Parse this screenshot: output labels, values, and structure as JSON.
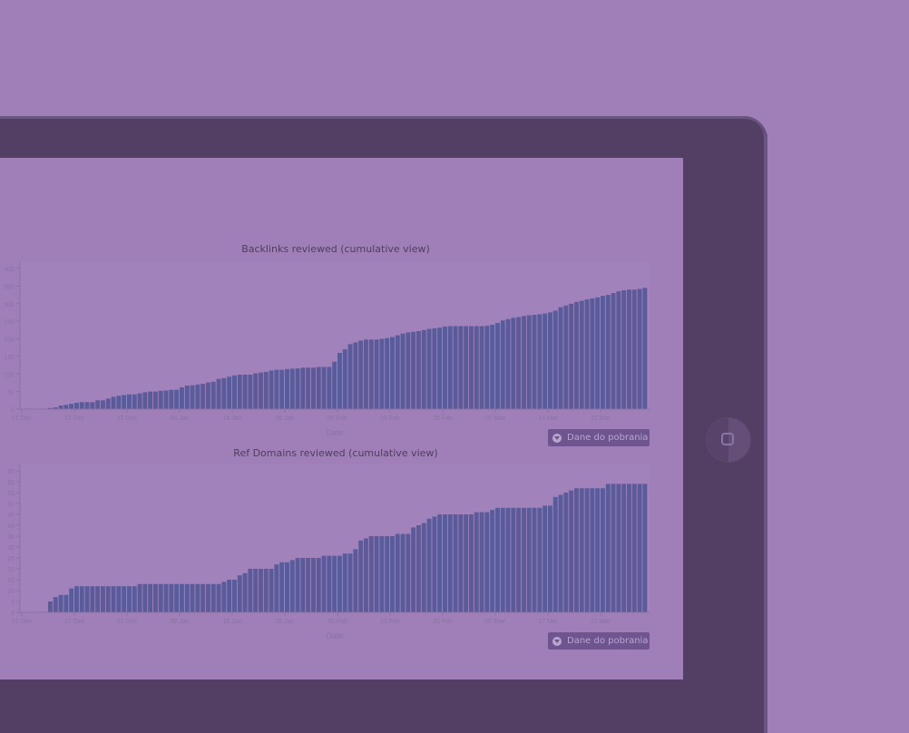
{
  "colors": {
    "background": "#a07fb9",
    "device_frame": "#533f63",
    "bar": "#5a5b9a",
    "axis": "#8a72a0",
    "title": "#4e3e5e",
    "button": "#6f5590"
  },
  "charts": [
    {
      "title": "Backlinks reviewed (cumulative view)",
      "xlabel": "Date",
      "y_ticks": [
        "0",
        "50",
        "100",
        "150",
        "200",
        "250",
        "300",
        "350",
        "400"
      ],
      "x_ticks": [
        "07 Dec",
        "17 Dec",
        "27 Dec",
        "06 Jan",
        "16 Jan",
        "26 Jan",
        "05 Feb",
        "15 Feb",
        "25 Feb",
        "07 Mar",
        "17 Mar",
        "27 Mar"
      ],
      "download_label": "Dane do pobrania"
    },
    {
      "title": "Ref Domains reviewed (cumulative view)",
      "xlabel": "Date",
      "y_ticks": [
        "0",
        "5",
        "10",
        "15",
        "20",
        "25",
        "30",
        "35",
        "40",
        "45",
        "50",
        "55",
        "60",
        "65"
      ],
      "x_ticks": [
        "07 Dec",
        "17 Dec",
        "27 Dec",
        "06 Jan",
        "16 Jan",
        "26 Jan",
        "05 Feb",
        "15 Feb",
        "25 Feb",
        "07 Mar",
        "17 Mar",
        "27 Mar"
      ],
      "download_label": "Dane do pobrania"
    }
  ],
  "chart_data": [
    {
      "type": "bar",
      "title": "Backlinks reviewed (cumulative view)",
      "xlabel": "Date",
      "ylabel": "",
      "ylim": [
        0,
        420
      ],
      "x_start": "12 Dec",
      "x_end": "03 Apr",
      "x_tick_labels": [
        "07 Dec",
        "17 Dec",
        "27 Dec",
        "06 Jan",
        "16 Jan",
        "26 Jan",
        "05 Feb",
        "15 Feb",
        "25 Feb",
        "07 Mar",
        "17 Mar",
        "27 Mar"
      ],
      "values": [
        3,
        5,
        10,
        12,
        15,
        18,
        20,
        20,
        20,
        25,
        25,
        30,
        35,
        38,
        40,
        42,
        42,
        45,
        48,
        50,
        50,
        52,
        53,
        55,
        55,
        62,
        67,
        68,
        70,
        72,
        76,
        78,
        86,
        88,
        92,
        96,
        98,
        98,
        98,
        102,
        104,
        106,
        110,
        112,
        112,
        114,
        115,
        116,
        118,
        118,
        118,
        120,
        120,
        120,
        135,
        160,
        170,
        185,
        190,
        195,
        198,
        198,
        198,
        200,
        202,
        205,
        210,
        215,
        218,
        220,
        222,
        225,
        228,
        230,
        232,
        235,
        236,
        236,
        236,
        236,
        236,
        236,
        236,
        237,
        240,
        245,
        252,
        256,
        260,
        262,
        265,
        267,
        268,
        270,
        272,
        275,
        280,
        290,
        295,
        300,
        305,
        308,
        312,
        315,
        318,
        322,
        325,
        330,
        335,
        338,
        340,
        340,
        342,
        345,
        348,
        350,
        355,
        362,
        375,
        385,
        390
      ]
    },
    {
      "type": "bar",
      "title": "Ref Domains reviewed (cumulative view)",
      "xlabel": "Date",
      "ylabel": "",
      "ylim": [
        0,
        68
      ],
      "x_start": "12 Dec",
      "x_end": "03 Apr",
      "x_tick_labels": [
        "07 Dec",
        "17 Dec",
        "27 Dec",
        "06 Jan",
        "16 Jan",
        "26 Jan",
        "05 Feb",
        "15 Feb",
        "25 Feb",
        "07 Mar",
        "17 Mar",
        "27 Mar"
      ],
      "values": [
        5,
        7,
        8,
        8,
        11,
        12,
        12,
        12,
        12,
        12,
        12,
        12,
        12,
        12,
        12,
        12,
        12,
        13,
        13,
        13,
        13,
        13,
        13,
        13,
        13,
        13,
        13,
        13,
        13,
        13,
        13,
        13,
        13,
        14,
        15,
        15,
        17,
        18,
        20,
        20,
        20,
        20,
        20,
        22,
        23,
        23,
        24,
        25,
        25,
        25,
        25,
        25,
        26,
        26,
        26,
        26,
        27,
        27,
        29,
        33,
        34,
        35,
        35,
        35,
        35,
        35,
        36,
        36,
        36,
        39,
        40,
        41,
        43,
        44,
        45,
        45,
        45,
        45,
        45,
        45,
        45,
        46,
        46,
        46,
        47,
        48,
        48,
        48,
        48,
        48,
        48,
        48,
        48,
        48,
        49,
        49,
        53,
        54,
        55,
        56,
        57,
        57,
        57,
        57,
        57,
        57,
        59,
        59,
        59,
        59,
        59,
        59,
        59,
        59,
        60,
        61,
        62,
        62,
        63
      ]
    }
  ]
}
